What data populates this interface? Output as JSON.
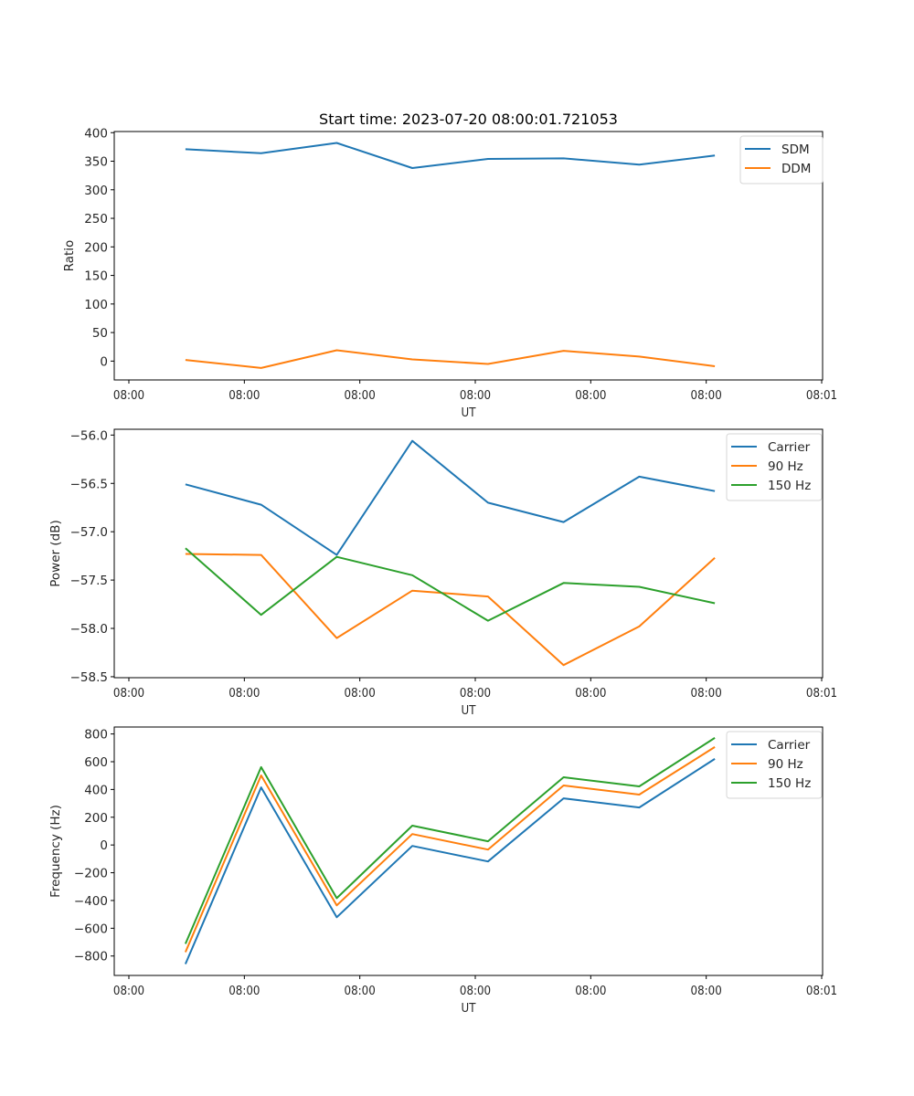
{
  "figure_title": "Start time: 2023-07-20 08:00:01.721053",
  "colors": {
    "blue": "#1f77b4",
    "orange": "#ff7f0e",
    "green": "#2ca02c"
  },
  "chart_data": [
    {
      "type": "line",
      "title": "Start time: 2023-07-20 08:00:01.721053",
      "xlabel": "UT",
      "ylabel": "Ratio",
      "xtick_labels": [
        "08:00",
        "08:00",
        "08:00",
        "08:00",
        "08:00",
        "08:00",
        "08:01"
      ],
      "x": [
        0.49,
        1.145,
        1.8,
        2.455,
        3.11,
        3.765,
        4.42,
        5.075
      ],
      "xlim": [
        -0.12,
        6.0
      ],
      "yticks": [
        0,
        50,
        100,
        150,
        200,
        250,
        300,
        350,
        400
      ],
      "ytick_labels": [
        "0",
        "50",
        "100",
        "150",
        "200",
        "250",
        "300",
        "350",
        "400"
      ],
      "ylim": [
        -33,
        402
      ],
      "grid": false,
      "legend_position": "top-right",
      "series": [
        {
          "name": "SDM",
          "color": "#1f77b4",
          "values": [
            371,
            364,
            382,
            338,
            354,
            355,
            344,
            360
          ]
        },
        {
          "name": "DDM",
          "color": "#ff7f0e",
          "values": [
            2,
            -12,
            19,
            3,
            -5,
            18,
            8,
            -9
          ]
        }
      ]
    },
    {
      "type": "line",
      "title": "",
      "xlabel": "UT",
      "ylabel": "Power (dB)",
      "xtick_labels": [
        "08:00",
        "08:00",
        "08:00",
        "08:00",
        "08:00",
        "08:00",
        "08:01"
      ],
      "x": [
        0.49,
        1.145,
        1.8,
        2.455,
        3.11,
        3.765,
        4.42,
        5.075
      ],
      "xlim": [
        -0.12,
        6.0
      ],
      "yticks": [
        -58.5,
        -58.0,
        -57.5,
        -57.0,
        -56.5,
        -56.0
      ],
      "ytick_labels": [
        "−58.5",
        "−58.0",
        "−57.5",
        "−57.0",
        "−56.5",
        "−56.0"
      ],
      "ylim": [
        -58.51,
        -55.94
      ],
      "grid": false,
      "legend_position": "top-right",
      "series": [
        {
          "name": "Carrier",
          "color": "#1f77b4",
          "values": [
            -56.51,
            -56.72,
            -57.24,
            -56.06,
            -56.7,
            -56.9,
            -56.43,
            -56.58
          ]
        },
        {
          "name": "90 Hz",
          "color": "#ff7f0e",
          "values": [
            -57.23,
            -57.24,
            -58.1,
            -57.61,
            -57.67,
            -58.38,
            -57.98,
            -57.27
          ]
        },
        {
          "name": "150 Hz",
          "color": "#2ca02c",
          "values": [
            -57.17,
            -57.86,
            -57.26,
            -57.45,
            -57.92,
            -57.53,
            -57.57,
            -57.74
          ]
        }
      ]
    },
    {
      "type": "line",
      "title": "",
      "xlabel": "UT",
      "ylabel": "Frequency (Hz)",
      "xtick_labels": [
        "08:00",
        "08:00",
        "08:00",
        "08:00",
        "08:00",
        "08:00",
        "08:01"
      ],
      "x": [
        0.49,
        1.145,
        1.8,
        2.455,
        3.11,
        3.765,
        4.42,
        5.075
      ],
      "xlim": [
        -0.12,
        6.0
      ],
      "yticks": [
        -800,
        -600,
        -400,
        -200,
        0,
        200,
        400,
        600,
        800
      ],
      "ytick_labels": [
        "−800",
        "−600",
        "−400",
        "−200",
        "0",
        "200",
        "400",
        "600",
        "800"
      ],
      "ylim": [
        -940,
        850
      ],
      "grid": false,
      "legend_position": "top-right",
      "series": [
        {
          "name": "Carrier",
          "color": "#1f77b4",
          "values": [
            -858,
            415,
            -521,
            -7,
            -119,
            336,
            270,
            620
          ]
        },
        {
          "name": "90 Hz",
          "color": "#ff7f0e",
          "values": [
            -772,
            501,
            -435,
            79,
            -33,
            429,
            363,
            706
          ]
        },
        {
          "name": "150 Hz",
          "color": "#2ca02c",
          "values": [
            -712,
            561,
            -383,
            139,
            27,
            488,
            422,
            772
          ]
        }
      ]
    }
  ]
}
